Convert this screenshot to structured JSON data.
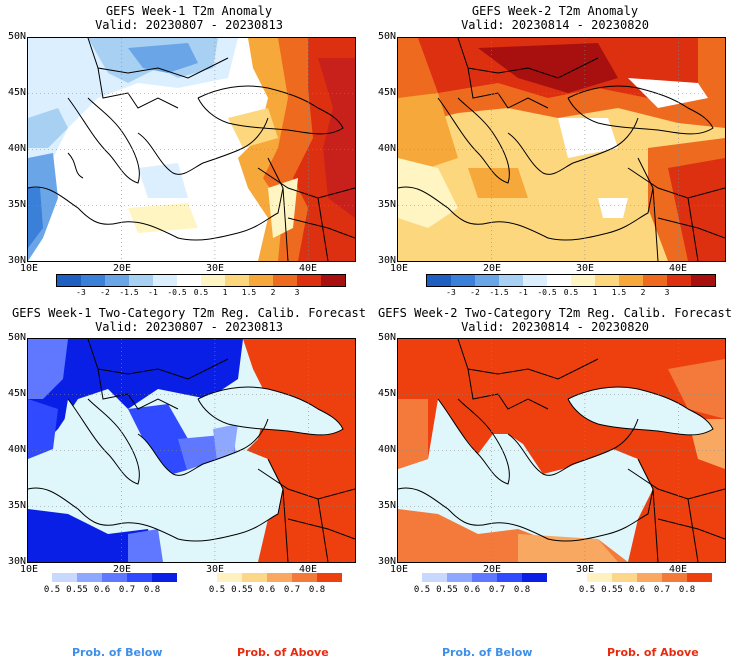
{
  "panels": [
    {
      "title": "GEFS Week-1 T2m Anomaly",
      "valid": "Valid: 20230807 - 20230813",
      "type": "anomaly"
    },
    {
      "title": "GEFS Week-2 T2m Anomaly",
      "valid": "Valid: 20230814 - 20230820",
      "type": "anomaly"
    },
    {
      "title": "GEFS Week-1 Two-Category T2m Reg. Calib. Forecast",
      "valid": "Valid: 20230807 - 20230813",
      "type": "probability"
    },
    {
      "title": "GEFS Week-2 Two-Category T2m Reg. Calib. Forecast",
      "valid": "Valid: 20230814 - 20230820",
      "type": "probability"
    }
  ],
  "map_axes": {
    "lat_labels": [
      "50N",
      "45N",
      "40N",
      "35N",
      "30N"
    ],
    "lon_labels": [
      "10E",
      "20E",
      "30E",
      "40E"
    ]
  },
  "anomaly_colorbar": {
    "colors": [
      "#1f5fbf",
      "#3a7fd8",
      "#6aa5e8",
      "#a8d0f3",
      "#dcefff",
      "#ffffff",
      "#fff5c2",
      "#fcd77e",
      "#f7a83a",
      "#ee6a1e",
      "#dd3010",
      "#a81010"
    ],
    "ticks": [
      "-3",
      "-2",
      "-1.5",
      "-1",
      "-0.5",
      "0.5",
      "1",
      "1.5",
      "2",
      "3"
    ]
  },
  "prob_below_bar": {
    "colors": [
      "#c8d8ff",
      "#8fa8ff",
      "#5f78ff",
      "#2f4aff",
      "#0a1fe6"
    ],
    "ticks": [
      "0.5",
      "0.55",
      "0.6",
      "0.7",
      "0.8"
    ]
  },
  "prob_above_bar": {
    "colors": [
      "#fff1c0",
      "#fcd78a",
      "#f8a860",
      "#f37a3a",
      "#ee3f0f"
    ],
    "ticks": [
      "0.5",
      "0.55",
      "0.6",
      "0.7",
      "0.8"
    ]
  },
  "prob_labels": {
    "below": "Prob. of Below",
    "above": "Prob. of Above"
  },
  "colors": {
    "below_label": "#3f8fe8",
    "above_label": "#e82b10",
    "sea": "#dff6fb"
  }
}
